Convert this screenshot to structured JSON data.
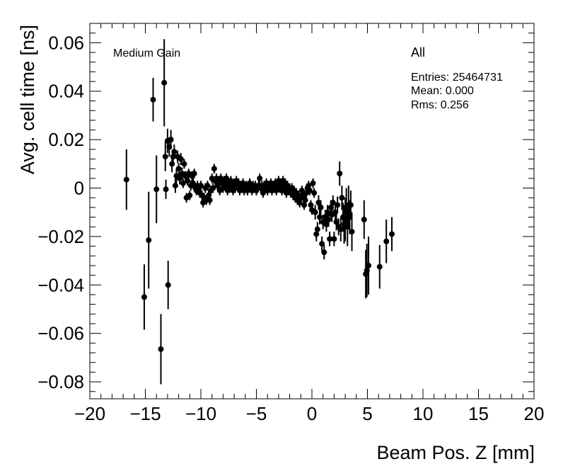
{
  "chart_data": {
    "type": "scatter",
    "xlabel": "Beam Pos. Z [mm]",
    "ylabel": "Avg. cell time [ns]",
    "xlim": [
      -20,
      20
    ],
    "ylim": [
      -0.087,
      0.068
    ],
    "x_ticks": [
      -20,
      -15,
      -10,
      -5,
      0,
      5,
      10,
      15,
      20
    ],
    "x_tick_labels": [
      "−20",
      "−15",
      "−10",
      "−5",
      "0",
      "5",
      "10",
      "15",
      "20"
    ],
    "y_ticks": [
      -0.08,
      -0.06,
      -0.04,
      -0.02,
      0,
      0.02,
      0.04,
      0.06
    ],
    "y_tick_labels": [
      "−0.08",
      "−0.06",
      "−0.04",
      "−0.02",
      "0",
      "0.02",
      "0.04",
      "0.06"
    ],
    "grid": false,
    "marker_color": "#000000",
    "annotations": {
      "gain_label": "Medium Gain",
      "stats_title": "All",
      "entries": "Entries: 25464731",
      "mean": "Mean: 0.000",
      "rms": "Rms: 0.256"
    },
    "points": [
      {
        "x": -16.7,
        "y": 0.0035,
        "err": 0.0125
      },
      {
        "x": -15.1,
        "y": -0.045,
        "err": 0.0135
      },
      {
        "x": -14.7,
        "y": -0.0215,
        "err": 0.02
      },
      {
        "x": -14.3,
        "y": 0.0365,
        "err": 0.009
      },
      {
        "x": -14.0,
        "y": -0.0005,
        "err": 0.014
      },
      {
        "x": -13.6,
        "y": -0.0665,
        "err": 0.0145
      },
      {
        "x": -13.3,
        "y": 0.0435,
        "err": 0.018
      },
      {
        "x": -13.2,
        "y": 0.013,
        "err": 0.006
      },
      {
        "x": -13.15,
        "y": -0.0005,
        "err": 0.004
      },
      {
        "x": -13.0,
        "y": 0.0195,
        "err": 0.005
      },
      {
        "x": -12.95,
        "y": -0.04,
        "err": 0.01
      },
      {
        "x": -12.85,
        "y": 0.017,
        "err": 0.004
      },
      {
        "x": -12.7,
        "y": 0.02,
        "err": 0.004
      },
      {
        "x": -12.6,
        "y": 0.01,
        "err": 0.0035
      },
      {
        "x": -12.5,
        "y": 0.013,
        "err": 0.003
      },
      {
        "x": -12.4,
        "y": 0.015,
        "err": 0.003
      },
      {
        "x": -12.3,
        "y": 0.001,
        "err": 0.003
      },
      {
        "x": -12.2,
        "y": 0.005,
        "err": 0.003
      },
      {
        "x": -12.1,
        "y": 0.013,
        "err": 0.0025
      },
      {
        "x": -12.0,
        "y": 0.008,
        "err": 0.0025
      },
      {
        "x": -11.9,
        "y": 0.004,
        "err": 0.0025
      },
      {
        "x": -11.8,
        "y": 0.012,
        "err": 0.0025
      },
      {
        "x": -11.7,
        "y": 0.006,
        "err": 0.0025
      },
      {
        "x": -11.6,
        "y": 0.002,
        "err": 0.002
      },
      {
        "x": -11.5,
        "y": 0.01,
        "err": 0.002
      },
      {
        "x": -11.4,
        "y": 0.005,
        "err": 0.002
      },
      {
        "x": -11.3,
        "y": -0.004,
        "err": 0.002
      },
      {
        "x": -11.2,
        "y": 0.003,
        "err": 0.002
      },
      {
        "x": -11.1,
        "y": 0.006,
        "err": 0.002
      },
      {
        "x": -11.0,
        "y": -0.003,
        "err": 0.002
      },
      {
        "x": -10.9,
        "y": 0.001,
        "err": 0.002
      },
      {
        "x": -10.8,
        "y": 0.005,
        "err": 0.002
      },
      {
        "x": -10.7,
        "y": 0.002,
        "err": 0.002
      },
      {
        "x": -10.6,
        "y": 0.006,
        "err": 0.002
      },
      {
        "x": -10.5,
        "y": 0.0,
        "err": 0.002
      },
      {
        "x": -10.4,
        "y": -0.001,
        "err": 0.002
      },
      {
        "x": -10.3,
        "y": 0.001,
        "err": 0.002
      },
      {
        "x": -10.2,
        "y": 0.0,
        "err": 0.002
      },
      {
        "x": -10.1,
        "y": -0.002,
        "err": 0.002
      },
      {
        "x": -10.0,
        "y": 0.001,
        "err": 0.002
      },
      {
        "x": -9.9,
        "y": -0.003,
        "err": 0.002
      },
      {
        "x": -9.8,
        "y": -0.006,
        "err": 0.002
      },
      {
        "x": -9.7,
        "y": -0.004,
        "err": 0.002
      },
      {
        "x": -9.6,
        "y": 0.0,
        "err": 0.002
      },
      {
        "x": -9.5,
        "y": -0.005,
        "err": 0.002
      },
      {
        "x": -9.4,
        "y": 0.001,
        "err": 0.002
      },
      {
        "x": -9.3,
        "y": -0.003,
        "err": 0.002
      },
      {
        "x": -9.2,
        "y": -0.005,
        "err": 0.002
      },
      {
        "x": -9.1,
        "y": -0.001,
        "err": 0.002
      },
      {
        "x": -9.0,
        "y": 0.004,
        "err": 0.002
      },
      {
        "x": -8.9,
        "y": 0.0,
        "err": 0.002
      },
      {
        "x": -8.8,
        "y": 0.008,
        "err": 0.002
      },
      {
        "x": -8.7,
        "y": 0.003,
        "err": 0.002
      },
      {
        "x": -8.6,
        "y": 0.004,
        "err": 0.002
      },
      {
        "x": -8.5,
        "y": 0.001,
        "err": 0.002
      },
      {
        "x": -8.4,
        "y": 0.003,
        "err": 0.002
      },
      {
        "x": -8.3,
        "y": -0.001,
        "err": 0.002
      },
      {
        "x": -8.2,
        "y": 0.004,
        "err": 0.002
      },
      {
        "x": -8.1,
        "y": 0.002,
        "err": 0.002
      },
      {
        "x": -8.0,
        "y": 0.0,
        "err": 0.002
      },
      {
        "x": -7.9,
        "y": 0.003,
        "err": 0.002
      },
      {
        "x": -7.8,
        "y": 0.001,
        "err": 0.002
      },
      {
        "x": -7.7,
        "y": 0.004,
        "err": 0.002
      },
      {
        "x": -7.6,
        "y": -0.001,
        "err": 0.002
      },
      {
        "x": -7.5,
        "y": 0.002,
        "err": 0.002
      },
      {
        "x": -7.4,
        "y": 0.0,
        "err": 0.002
      },
      {
        "x": -7.3,
        "y": 0.003,
        "err": 0.002
      },
      {
        "x": -7.2,
        "y": 0.001,
        "err": 0.002
      },
      {
        "x": -7.1,
        "y": -0.001,
        "err": 0.002
      },
      {
        "x": -7.0,
        "y": 0.002,
        "err": 0.002
      },
      {
        "x": -6.9,
        "y": 0.0,
        "err": 0.002
      },
      {
        "x": -6.8,
        "y": 0.003,
        "err": 0.002
      },
      {
        "x": -6.7,
        "y": 0.001,
        "err": 0.002
      },
      {
        "x": -6.6,
        "y": 0.002,
        "err": 0.002
      },
      {
        "x": -6.5,
        "y": -0.001,
        "err": 0.002
      },
      {
        "x": -6.4,
        "y": 0.001,
        "err": 0.002
      },
      {
        "x": -6.3,
        "y": 0.0,
        "err": 0.002
      },
      {
        "x": -6.2,
        "y": 0.002,
        "err": 0.002
      },
      {
        "x": -6.1,
        "y": -0.001,
        "err": 0.002
      },
      {
        "x": -6.0,
        "y": 0.0,
        "err": 0.002
      },
      {
        "x": -5.9,
        "y": 0.001,
        "err": 0.002
      },
      {
        "x": -5.8,
        "y": -0.001,
        "err": 0.002
      },
      {
        "x": -5.7,
        "y": 0.0,
        "err": 0.002
      },
      {
        "x": -5.6,
        "y": 0.002,
        "err": 0.002
      },
      {
        "x": -5.5,
        "y": 0.0,
        "err": 0.002
      },
      {
        "x": -5.4,
        "y": -0.001,
        "err": 0.002
      },
      {
        "x": -5.3,
        "y": 0.001,
        "err": 0.002
      },
      {
        "x": -5.2,
        "y": 0.0,
        "err": 0.002
      },
      {
        "x": -5.1,
        "y": 0.001,
        "err": 0.002
      },
      {
        "x": -5.0,
        "y": -0.001,
        "err": 0.002
      },
      {
        "x": -4.9,
        "y": 0.0,
        "err": 0.002
      },
      {
        "x": -4.8,
        "y": 0.001,
        "err": 0.002
      },
      {
        "x": -4.7,
        "y": 0.004,
        "err": 0.002
      },
      {
        "x": -4.6,
        "y": 0.0,
        "err": 0.002
      },
      {
        "x": -4.5,
        "y": 0.001,
        "err": 0.002
      },
      {
        "x": -4.4,
        "y": -0.002,
        "err": 0.002
      },
      {
        "x": -4.3,
        "y": 0.001,
        "err": 0.002
      },
      {
        "x": -4.2,
        "y": 0.0,
        "err": 0.002
      },
      {
        "x": -4.1,
        "y": 0.002,
        "err": 0.002
      },
      {
        "x": -4.0,
        "y": -0.001,
        "err": 0.002
      },
      {
        "x": -3.9,
        "y": 0.001,
        "err": 0.002
      },
      {
        "x": -3.8,
        "y": 0.0,
        "err": 0.002
      },
      {
        "x": -3.7,
        "y": 0.002,
        "err": 0.002
      },
      {
        "x": -3.6,
        "y": -0.001,
        "err": 0.002
      },
      {
        "x": -3.5,
        "y": 0.001,
        "err": 0.002
      },
      {
        "x": -3.4,
        "y": 0.0,
        "err": 0.002
      },
      {
        "x": -3.3,
        "y": 0.002,
        "err": 0.002
      },
      {
        "x": -3.2,
        "y": -0.001,
        "err": 0.002
      },
      {
        "x": -3.1,
        "y": 0.001,
        "err": 0.002
      },
      {
        "x": -3.0,
        "y": 0.003,
        "err": 0.002
      },
      {
        "x": -2.9,
        "y": 0.0,
        "err": 0.002
      },
      {
        "x": -2.8,
        "y": 0.002,
        "err": 0.002
      },
      {
        "x": -2.7,
        "y": -0.001,
        "err": 0.002
      },
      {
        "x": -2.6,
        "y": 0.003,
        "err": 0.002
      },
      {
        "x": -2.5,
        "y": 0.0,
        "err": 0.002
      },
      {
        "x": -2.4,
        "y": 0.002,
        "err": 0.002
      },
      {
        "x": -2.3,
        "y": -0.002,
        "err": 0.002
      },
      {
        "x": -2.2,
        "y": 0.001,
        "err": 0.002
      },
      {
        "x": -2.1,
        "y": -0.001,
        "err": 0.002
      },
      {
        "x": -2.0,
        "y": 0.0,
        "err": 0.002
      },
      {
        "x": -1.9,
        "y": -0.002,
        "err": 0.002
      },
      {
        "x": -1.8,
        "y": 0.0,
        "err": 0.002
      },
      {
        "x": -1.7,
        "y": -0.003,
        "err": 0.002
      },
      {
        "x": -1.6,
        "y": -0.001,
        "err": 0.002
      },
      {
        "x": -1.5,
        "y": -0.004,
        "err": 0.002
      },
      {
        "x": -1.4,
        "y": -0.002,
        "err": 0.002
      },
      {
        "x": -1.3,
        "y": -0.005,
        "err": 0.002
      },
      {
        "x": -1.2,
        "y": -0.003,
        "err": 0.002
      },
      {
        "x": -1.1,
        "y": -0.006,
        "err": 0.002
      },
      {
        "x": -1.0,
        "y": -0.004,
        "err": 0.002
      },
      {
        "x": -0.9,
        "y": -0.001,
        "err": 0.002
      },
      {
        "x": -0.8,
        "y": -0.003,
        "err": 0.002
      },
      {
        "x": -0.7,
        "y": -0.007,
        "err": 0.002
      },
      {
        "x": -0.6,
        "y": -0.005,
        "err": 0.002
      },
      {
        "x": -0.5,
        "y": -0.002,
        "err": 0.002
      },
      {
        "x": -0.4,
        "y": 0.0,
        "err": 0.002
      },
      {
        "x": -0.3,
        "y": 0.001,
        "err": 0.002
      },
      {
        "x": -0.2,
        "y": -0.001,
        "err": 0.002
      },
      {
        "x": -0.1,
        "y": -0.007,
        "err": 0.002
      },
      {
        "x": 0.0,
        "y": -0.009,
        "err": 0.002
      },
      {
        "x": 0.1,
        "y": 0.002,
        "err": 0.002
      },
      {
        "x": 0.2,
        "y": -0.002,
        "err": 0.002
      },
      {
        "x": 0.3,
        "y": -0.01,
        "err": 0.003
      },
      {
        "x": 0.4,
        "y": -0.019,
        "err": 0.003
      },
      {
        "x": 0.5,
        "y": -0.017,
        "err": 0.003
      },
      {
        "x": 0.6,
        "y": -0.006,
        "err": 0.003
      },
      {
        "x": 0.7,
        "y": -0.012,
        "err": 0.003
      },
      {
        "x": 0.8,
        "y": -0.008,
        "err": 0.003
      },
      {
        "x": 0.9,
        "y": -0.023,
        "err": 0.003
      },
      {
        "x": 1.0,
        "y": -0.014,
        "err": 0.003
      },
      {
        "x": 1.1,
        "y": -0.0265,
        "err": 0.003
      },
      {
        "x": 1.2,
        "y": -0.012,
        "err": 0.003
      },
      {
        "x": 1.3,
        "y": -0.015,
        "err": 0.003
      },
      {
        "x": 1.4,
        "y": -0.01,
        "err": 0.003
      },
      {
        "x": 1.5,
        "y": -0.013,
        "err": 0.003
      },
      {
        "x": 1.6,
        "y": -0.021,
        "err": 0.003
      },
      {
        "x": 1.7,
        "y": -0.008,
        "err": 0.003
      },
      {
        "x": 1.8,
        "y": -0.011,
        "err": 0.003
      },
      {
        "x": 1.9,
        "y": -0.006,
        "err": 0.003
      },
      {
        "x": 2.0,
        "y": -0.021,
        "err": 0.003
      },
      {
        "x": 2.1,
        "y": -0.01,
        "err": 0.003
      },
      {
        "x": 2.2,
        "y": -0.014,
        "err": 0.0035
      },
      {
        "x": 2.3,
        "y": -0.007,
        "err": 0.0035
      },
      {
        "x": 2.4,
        "y": -0.016,
        "err": 0.0035
      },
      {
        "x": 2.5,
        "y": 0.006,
        "err": 0.005
      },
      {
        "x": 2.6,
        "y": -0.017,
        "err": 0.005
      },
      {
        "x": 2.7,
        "y": -0.004,
        "err": 0.005
      },
      {
        "x": 2.8,
        "y": -0.012,
        "err": 0.006
      },
      {
        "x": 2.9,
        "y": -0.015,
        "err": 0.008
      },
      {
        "x": 3.0,
        "y": -0.013,
        "err": 0.009
      },
      {
        "x": 3.1,
        "y": -0.008,
        "err": 0.008
      },
      {
        "x": 3.2,
        "y": -0.016,
        "err": 0.008
      },
      {
        "x": 3.3,
        "y": -0.007,
        "err": 0.008
      },
      {
        "x": 3.4,
        "y": -0.012,
        "err": 0.007
      },
      {
        "x": 3.5,
        "y": -0.007,
        "err": 0.006
      },
      {
        "x": 3.6,
        "y": -0.018,
        "err": 0.008
      },
      {
        "x": 4.7,
        "y": -0.013,
        "err": 0.008
      },
      {
        "x": 4.85,
        "y": -0.0355,
        "err": 0.01
      },
      {
        "x": 4.95,
        "y": -0.034,
        "err": 0.011
      },
      {
        "x": 5.1,
        "y": -0.032,
        "err": 0.012
      },
      {
        "x": 6.1,
        "y": -0.0325,
        "err": 0.009
      },
      {
        "x": 6.7,
        "y": -0.022,
        "err": 0.009
      },
      {
        "x": 7.2,
        "y": -0.019,
        "err": 0.007
      }
    ]
  }
}
